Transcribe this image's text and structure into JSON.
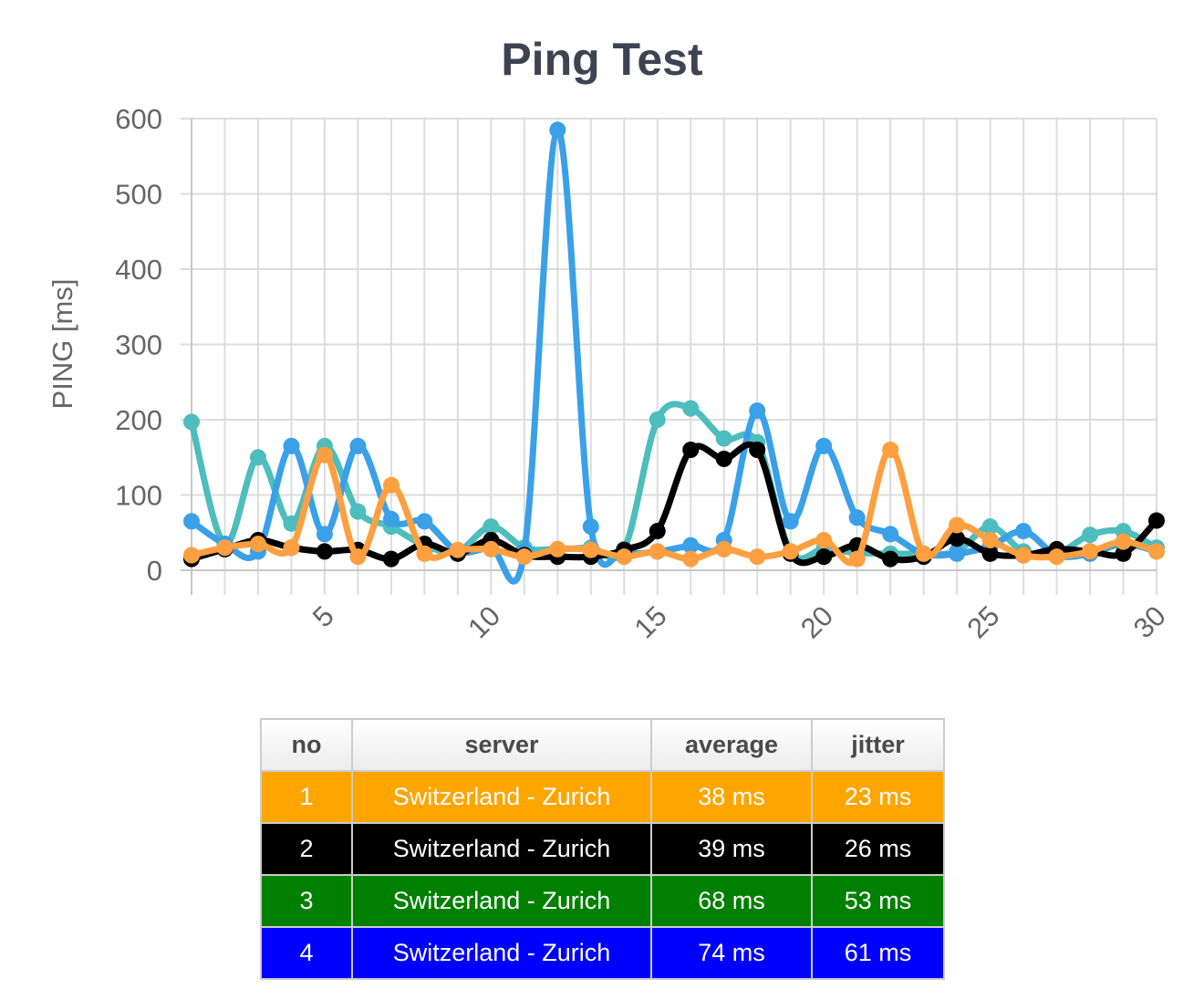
{
  "chart_data": {
    "type": "line",
    "title": "Ping Test",
    "ylabel": "PING [ms]",
    "xlabel": "",
    "ylim": [
      0,
      600
    ],
    "yticks": [
      0,
      100,
      200,
      300,
      400,
      500,
      600
    ],
    "xlim": [
      1,
      30
    ],
    "xticks": [
      5,
      10,
      15,
      20,
      25,
      30
    ],
    "grid": true,
    "x": [
      1,
      2,
      3,
      4,
      5,
      6,
      7,
      8,
      9,
      10,
      11,
      12,
      13,
      14,
      15,
      16,
      17,
      18,
      19,
      20,
      21,
      22,
      23,
      24,
      25,
      26,
      27,
      28,
      29,
      30
    ],
    "series": [
      {
        "color": "#4dbdbd",
        "values": [
          197,
          35,
          150,
          62,
          165,
          78,
          58,
          33,
          25,
          58,
          30,
          28,
          30,
          28,
          200,
          215,
          175,
          170,
          25,
          28,
          23,
          22,
          22,
          25,
          58,
          25,
          22,
          47,
          52,
          30
        ]
      },
      {
        "color": "#3aa0e8",
        "values": [
          65,
          35,
          25,
          165,
          48,
          165,
          68,
          65,
          25,
          30,
          25,
          585,
          58,
          25,
          25,
          33,
          40,
          212,
          65,
          165,
          70,
          48,
          22,
          22,
          32,
          52,
          20,
          22,
          35,
          25
        ]
      },
      {
        "color": "#000000",
        "values": [
          15,
          28,
          40,
          30,
          25,
          27,
          15,
          35,
          22,
          40,
          20,
          18,
          18,
          27,
          52,
          160,
          148,
          160,
          22,
          18,
          33,
          15,
          18,
          42,
          22,
          20,
          28,
          25,
          22,
          66
        ]
      },
      {
        "color": "#ff9f40",
        "values": [
          20,
          30,
          35,
          30,
          153,
          18,
          113,
          22,
          27,
          28,
          18,
          28,
          27,
          18,
          25,
          15,
          28,
          18,
          25,
          40,
          15,
          160,
          22,
          60,
          40,
          20,
          18,
          25,
          38,
          25
        ]
      }
    ]
  },
  "table": {
    "headers": [
      "no",
      "server",
      "average",
      "jitter"
    ],
    "rows": [
      {
        "no": "1",
        "server": "Switzerland - Zurich",
        "average": "38 ms",
        "jitter": "23 ms",
        "bg": "#ffa500"
      },
      {
        "no": "2",
        "server": "Switzerland - Zurich",
        "average": "39 ms",
        "jitter": "26 ms",
        "bg": "#000000"
      },
      {
        "no": "3",
        "server": "Switzerland - Zurich",
        "average": "68 ms",
        "jitter": "53 ms",
        "bg": "#008000"
      },
      {
        "no": "4",
        "server": "Switzerland - Zurich",
        "average": "74 ms",
        "jitter": "61 ms",
        "bg": "#0000ff"
      }
    ]
  }
}
